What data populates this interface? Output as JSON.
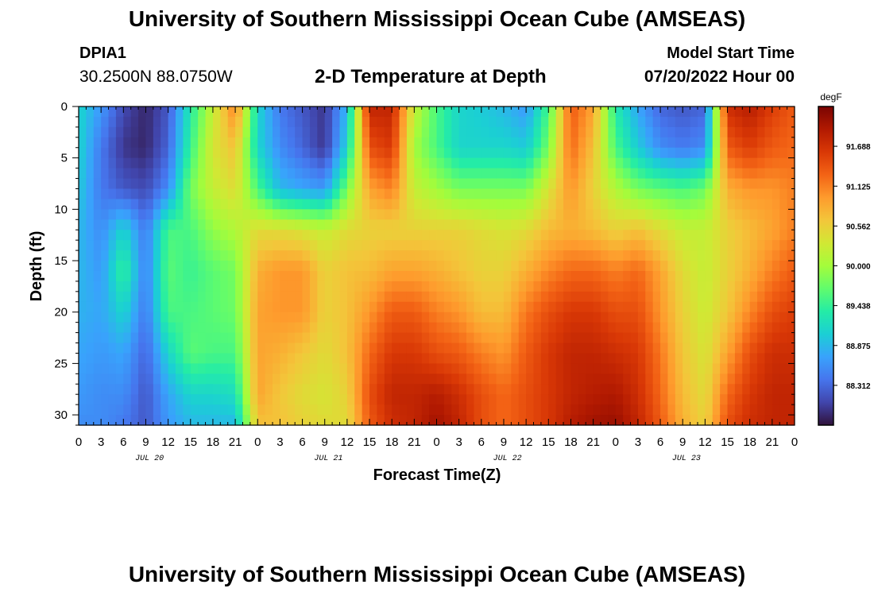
{
  "header": {
    "title": "University of Southern Mississippi Ocean Cube (AMSEAS)",
    "station": "DPIA1",
    "coords": "30.2500N  88.0750W",
    "plot_title": "2-D Temperature at Depth",
    "start_label": "Model Start Time",
    "start_value": "07/20/2022 Hour 00"
  },
  "footer": {
    "title": "University of Southern Mississippi Ocean Cube (AMSEAS)"
  },
  "chart_data": {
    "type": "heatmap",
    "title": "2-D Temperature at Depth",
    "xlabel": "Forecast Time(Z)",
    "ylabel": "Depth (ft)",
    "x_hours": [
      0,
      96
    ],
    "x_tick_labels": [
      "0",
      "3",
      "6",
      "9",
      "12",
      "15",
      "18",
      "21",
      "0",
      "3",
      "6",
      "9",
      "12",
      "15",
      "18",
      "21",
      "0",
      "3",
      "6",
      "9",
      "12",
      "15",
      "18",
      "21",
      "0",
      "3",
      "6",
      "9",
      "12",
      "15",
      "18",
      "21",
      "0"
    ],
    "date_labels": [
      "JUL 20",
      "JUL 21",
      "JUL 22",
      "JUL 23"
    ],
    "ylim": [
      0,
      31
    ],
    "y_ticks": [
      0,
      5,
      10,
      15,
      20,
      25,
      30
    ],
    "colorbar": {
      "unit": "degF",
      "range": [
        87.75,
        92.25
      ],
      "labels": [
        "91.688",
        "91.125",
        "90.562",
        "90.000",
        "89.438",
        "88.875",
        "88.312"
      ],
      "colors": [
        "#30123b",
        "#4145ab",
        "#4675ed",
        "#39a2fc",
        "#1bcfd4",
        "#24eca6",
        "#61fc6c",
        "#a4fc3b",
        "#d1e834",
        "#f3c63a",
        "#fe9b2d",
        "#f36315",
        "#d93806",
        "#b11901",
        "#7a0402"
      ]
    },
    "depth_profiles": [
      {
        "hour": 0,
        "z": [
          0.3,
          0.3,
          0.28,
          0.25,
          0.25,
          0.24,
          0.22,
          0.2,
          0.18
        ]
      },
      {
        "hour": 3,
        "z": [
          0.2,
          0.15,
          0.15,
          0.18,
          0.2,
          0.22,
          0.2,
          0.18,
          0.18
        ]
      },
      {
        "hour": 6,
        "z": [
          0.08,
          0.05,
          0.1,
          0.3,
          0.38,
          0.3,
          0.22,
          0.18,
          0.15
        ]
      },
      {
        "hour": 9,
        "z": [
          0.03,
          0.03,
          0.08,
          0.15,
          0.16,
          0.15,
          0.12,
          0.1,
          0.1
        ]
      },
      {
        "hour": 12,
        "z": [
          0.1,
          0.12,
          0.18,
          0.4,
          0.42,
          0.4,
          0.3,
          0.22,
          0.2
        ]
      },
      {
        "hour": 15,
        "z": [
          0.35,
          0.38,
          0.45,
          0.4,
          0.38,
          0.4,
          0.42,
          0.3,
          0.25
        ]
      },
      {
        "hour": 18,
        "z": [
          0.55,
          0.58,
          0.55,
          0.48,
          0.42,
          0.42,
          0.4,
          0.3,
          0.25
        ]
      },
      {
        "hour": 21,
        "z": [
          0.75,
          0.65,
          0.6,
          0.52,
          0.45,
          0.44,
          0.4,
          0.32,
          0.25
        ]
      },
      {
        "hour": 24,
        "z": [
          0.3,
          0.3,
          0.4,
          0.6,
          0.68,
          0.7,
          0.7,
          0.7,
          0.65
        ]
      },
      {
        "hour": 27,
        "z": [
          0.15,
          0.18,
          0.25,
          0.6,
          0.72,
          0.72,
          0.68,
          0.64,
          0.65
        ]
      },
      {
        "hour": 30,
        "z": [
          0.1,
          0.12,
          0.22,
          0.58,
          0.72,
          0.72,
          0.64,
          0.6,
          0.62
        ]
      },
      {
        "hour": 33,
        "z": [
          0.05,
          0.05,
          0.2,
          0.55,
          0.62,
          0.62,
          0.6,
          0.58,
          0.6
        ]
      },
      {
        "hour": 36,
        "z": [
          0.25,
          0.3,
          0.45,
          0.6,
          0.65,
          0.65,
          0.65,
          0.62,
          0.6
        ]
      },
      {
        "hour": 39,
        "z": [
          0.9,
          0.82,
          0.7,
          0.62,
          0.66,
          0.72,
          0.78,
          0.82,
          0.8
        ]
      },
      {
        "hour": 42,
        "z": [
          0.9,
          0.86,
          0.75,
          0.62,
          0.7,
          0.8,
          0.86,
          0.9,
          0.88
        ]
      },
      {
        "hour": 45,
        "z": [
          0.55,
          0.5,
          0.55,
          0.62,
          0.7,
          0.8,
          0.86,
          0.9,
          0.9
        ]
      },
      {
        "hour": 48,
        "z": [
          0.4,
          0.4,
          0.5,
          0.62,
          0.68,
          0.75,
          0.82,
          0.92,
          0.95
        ]
      },
      {
        "hour": 51,
        "z": [
          0.3,
          0.3,
          0.45,
          0.62,
          0.65,
          0.72,
          0.8,
          0.88,
          0.9
        ]
      },
      {
        "hour": 54,
        "z": [
          0.28,
          0.3,
          0.45,
          0.6,
          0.62,
          0.66,
          0.75,
          0.82,
          0.82
        ]
      },
      {
        "hour": 57,
        "z": [
          0.25,
          0.3,
          0.45,
          0.58,
          0.62,
          0.66,
          0.72,
          0.78,
          0.78
        ]
      },
      {
        "hour": 60,
        "z": [
          0.2,
          0.28,
          0.45,
          0.6,
          0.68,
          0.76,
          0.8,
          0.82,
          0.82
        ]
      },
      {
        "hour": 63,
        "z": [
          0.4,
          0.45,
          0.58,
          0.66,
          0.74,
          0.82,
          0.86,
          0.86,
          0.86
        ]
      },
      {
        "hour": 66,
        "z": [
          0.8,
          0.78,
          0.72,
          0.68,
          0.78,
          0.86,
          0.9,
          0.9,
          0.92
        ]
      },
      {
        "hour": 69,
        "z": [
          0.7,
          0.65,
          0.62,
          0.66,
          0.78,
          0.86,
          0.9,
          0.92,
          0.95
        ]
      },
      {
        "hour": 72,
        "z": [
          0.35,
          0.4,
          0.52,
          0.62,
          0.75,
          0.82,
          0.88,
          0.93,
          0.96
        ]
      },
      {
        "hour": 75,
        "z": [
          0.22,
          0.28,
          0.45,
          0.65,
          0.78,
          0.82,
          0.86,
          0.88,
          0.9
        ]
      },
      {
        "hour": 78,
        "z": [
          0.12,
          0.18,
          0.42,
          0.6,
          0.7,
          0.72,
          0.76,
          0.78,
          0.8
        ]
      },
      {
        "hour": 81,
        "z": [
          0.1,
          0.15,
          0.4,
          0.55,
          0.6,
          0.62,
          0.64,
          0.66,
          0.68
        ]
      },
      {
        "hour": 84,
        "z": [
          0.12,
          0.18,
          0.44,
          0.55,
          0.55,
          0.56,
          0.58,
          0.6,
          0.62
        ]
      },
      {
        "hour": 87,
        "z": [
          0.88,
          0.8,
          0.68,
          0.62,
          0.62,
          0.64,
          0.7,
          0.78,
          0.82
        ]
      },
      {
        "hour": 90,
        "z": [
          0.92,
          0.85,
          0.72,
          0.66,
          0.68,
          0.74,
          0.82,
          0.86,
          0.88
        ]
      },
      {
        "hour": 93,
        "z": [
          0.85,
          0.8,
          0.72,
          0.7,
          0.75,
          0.82,
          0.88,
          0.9,
          0.9
        ]
      },
      {
        "hour": 96,
        "z": [
          0.8,
          0.78,
          0.75,
          0.75,
          0.8,
          0.85,
          0.88,
          0.9,
          0.9
        ]
      }
    ],
    "profile_depths_ft": [
      0,
      4,
      8,
      12,
      16,
      20,
      24,
      28,
      31
    ]
  }
}
